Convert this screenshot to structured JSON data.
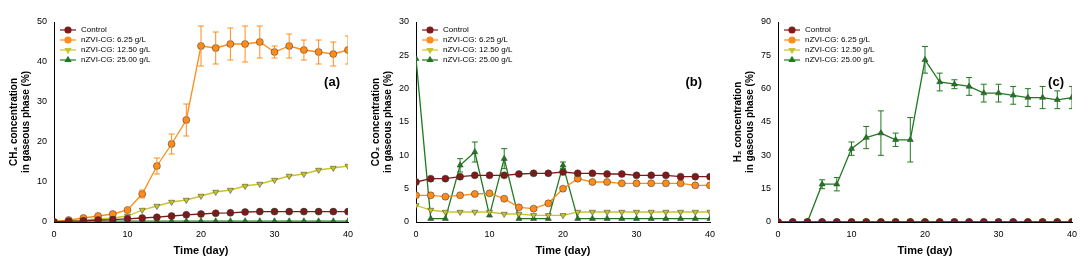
{
  "chart_data": [
    {
      "type": "line",
      "title": "(a)",
      "x_label": "Time (day)",
      "y_label": [
        "CH₄ concentration",
        "in gaseous phase (%)"
      ],
      "x": [
        0,
        2,
        4,
        6,
        8,
        10,
        12,
        14,
        16,
        18,
        20,
        22,
        24,
        26,
        28,
        30,
        32,
        34,
        36,
        38,
        40
      ],
      "xlim": [
        0,
        40
      ],
      "xticks": [
        0,
        10,
        20,
        30,
        40
      ],
      "ylim": [
        0,
        50
      ],
      "yticks": [
        0,
        10,
        20,
        30,
        40,
        50
      ],
      "grid": false,
      "legend": "top-left",
      "series": [
        {
          "name": "Control",
          "color": "#7f1a1a",
          "marker": "circle",
          "values": [
            0,
            0.2,
            0.3,
            0.5,
            0.6,
            0.8,
            1,
            1.2,
            1.5,
            1.8,
            2,
            2.2,
            2.3,
            2.5,
            2.6,
            2.6,
            2.6,
            2.6,
            2.6,
            2.6,
            2.6
          ]
        },
        {
          "name": "nZVI-CG: 6.25 g/L",
          "color": "#ff8c1a",
          "marker": "circle",
          "values": [
            0,
            0.5,
            1,
            1.5,
            2,
            3,
            7,
            14,
            19.5,
            25.5,
            44,
            43.5,
            44.5,
            44.5,
            45,
            42.5,
            44,
            43,
            42.5,
            42,
            43
          ],
          "errors": [
            0,
            0,
            0,
            0,
            0,
            0.5,
            1,
            2,
            2.5,
            4,
            5,
            4,
            4,
            4.5,
            4,
            1.5,
            3,
            2.5,
            3,
            3,
            3.5
          ]
        },
        {
          "name": "nZVI-CG: 12.50 g/L",
          "color": "#c9c42a",
          "marker": "triangle-down",
          "values": [
            0.2,
            0.3,
            0.5,
            0.8,
            1,
            1.5,
            3,
            4,
            5,
            5.5,
            6.5,
            7.5,
            8,
            9,
            9.5,
            10.5,
            11.5,
            12,
            13,
            13.5,
            14
          ]
        },
        {
          "name": "nZVI-CG: 25.00 g/L",
          "color": "#1f7a1f",
          "marker": "triangle",
          "values": [
            0.2,
            0.2,
            0.2,
            0.2,
            0.2,
            0.2,
            0.2,
            0.2,
            0.2,
            0.2,
            0.2,
            0.2,
            0.2,
            0.2,
            0.2,
            0.2,
            0.2,
            0.2,
            0.2,
            0.2,
            0.2
          ]
        }
      ]
    },
    {
      "type": "line",
      "title": "(b)",
      "x_label": "Time (day)",
      "y_label": [
        "CO₂ concentration",
        "in gaseous phase (%)"
      ],
      "x": [
        0,
        2,
        4,
        6,
        8,
        10,
        12,
        14,
        16,
        18,
        20,
        22,
        24,
        26,
        28,
        30,
        32,
        34,
        36,
        38,
        40
      ],
      "xlim": [
        0,
        40
      ],
      "xticks": [
        0,
        10,
        20,
        30,
        40
      ],
      "ylim": [
        0,
        30
      ],
      "yticks": [
        0,
        5,
        10,
        15,
        20,
        25,
        30
      ],
      "grid": false,
      "legend": "top-left",
      "series": [
        {
          "name": "Control",
          "color": "#7f1a1a",
          "marker": "circle",
          "values": [
            6,
            6.5,
            6.5,
            6.8,
            7,
            7,
            7,
            7.2,
            7.3,
            7.3,
            7.5,
            7.3,
            7.3,
            7.2,
            7.2,
            7,
            7,
            7,
            6.8,
            6.8,
            6.8
          ]
        },
        {
          "name": "nZVI-CG: 6.25 g/L",
          "color": "#ff8c1a",
          "marker": "circle",
          "values": [
            4,
            4,
            3.8,
            4,
            4.2,
            4.3,
            3.5,
            2.2,
            2,
            2.8,
            5,
            6.5,
            6,
            6,
            5.8,
            5.8,
            5.8,
            5.8,
            5.8,
            5.5,
            5.5
          ]
        },
        {
          "name": "nZVI-CG: 12.50 g/L",
          "color": "#c9c42a",
          "marker": "triangle-down",
          "values": [
            2.5,
            1.8,
            1.5,
            1.5,
            1.5,
            1.5,
            1.2,
            1.2,
            1,
            1,
            1,
            1.5,
            1.5,
            1.5,
            1.5,
            1.5,
            1.5,
            1.5,
            1.5,
            1.5,
            1.5
          ]
        },
        {
          "name": "nZVI-CG: 25.00 g/L",
          "color": "#1f7a1f",
          "marker": "triangle",
          "values": [
            24.5,
            0.5,
            0.5,
            8.5,
            10.5,
            1,
            9.5,
            0.5,
            0.5,
            0.5,
            8.5,
            0.5,
            0.5,
            0.5,
            0.5,
            0.5,
            0.5,
            0.5,
            0.5,
            0.5,
            0.5
          ],
          "errors": [
            0,
            0,
            0,
            1,
            1.5,
            0,
            1.5,
            0,
            0,
            0,
            0.5,
            0,
            0,
            0,
            0,
            0,
            0,
            0,
            0,
            0,
            0
          ]
        }
      ]
    },
    {
      "type": "line",
      "title": "(c)",
      "x_label": "Time (day)",
      "y_label": [
        "H₂ concentration",
        "in gaseous phase (%)"
      ],
      "x": [
        0,
        2,
        4,
        6,
        8,
        10,
        12,
        14,
        16,
        18,
        20,
        22,
        24,
        26,
        28,
        30,
        32,
        34,
        36,
        38,
        40
      ],
      "xlim": [
        0,
        40
      ],
      "xticks": [
        0,
        10,
        20,
        30,
        40
      ],
      "ylim": [
        0,
        90
      ],
      "yticks": [
        0,
        15,
        30,
        45,
        60,
        75,
        90
      ],
      "grid": false,
      "legend": "top-left",
      "series": [
        {
          "name": "Control",
          "color": "#7f1a1a",
          "marker": "circle",
          "values": [
            0,
            0,
            0,
            0,
            0,
            0,
            0,
            0,
            0,
            0,
            0,
            0,
            0,
            0,
            0,
            0,
            0,
            0,
            0,
            0,
            0
          ]
        },
        {
          "name": "nZVI-CG: 6.25 g/L",
          "color": "#ff8c1a",
          "marker": "circle",
          "values": [
            0,
            0,
            0,
            0,
            0,
            0,
            0,
            0,
            0,
            0,
            0,
            0,
            0,
            0,
            0,
            0,
            0,
            0,
            0,
            0,
            0
          ]
        },
        {
          "name": "nZVI-CG: 12.50 g/L",
          "color": "#c9c42a",
          "marker": "triangle-down",
          "values": [
            0,
            0,
            0,
            0,
            0,
            0,
            0,
            0,
            0,
            0,
            0,
            0,
            0,
            0,
            0,
            0,
            0,
            0,
            0,
            0,
            0
          ]
        },
        {
          "name": "nZVI-CG: 25.00 g/L",
          "color": "#1f7a1f",
          "marker": "triangle",
          "values": [
            0,
            0,
            0,
            17,
            17,
            33,
            38,
            40,
            37,
            37,
            73,
            63,
            62,
            61,
            58,
            58,
            57,
            56,
            56,
            55,
            56
          ],
          "errors": [
            0,
            0,
            0,
            2,
            3,
            3,
            5,
            10,
            3,
            10,
            6,
            4,
            2,
            4,
            4,
            4,
            4,
            4,
            5,
            4,
            5
          ]
        }
      ]
    }
  ]
}
